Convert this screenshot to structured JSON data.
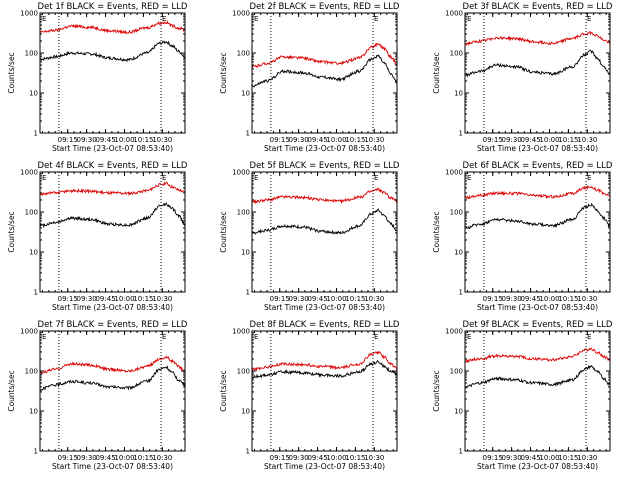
{
  "chart_data": [
    {
      "type": "line",
      "title": "Det 1f BLACK = Events, RED = LLD",
      "xlabel": "Start Time (23-Oct-07 08:53:40)",
      "ylabel": "Counts/sec",
      "xticks": [
        "09:15",
        "09:30",
        "09:45",
        "10:00",
        "10:15",
        "10:30"
      ],
      "yticks": [
        "1",
        "10",
        "100",
        "1000"
      ],
      "ylim": [
        1,
        1000
      ],
      "yscale": "log",
      "x_minutes_range": [
        0,
        115
      ],
      "marker_label": "E",
      "series": [
        {
          "color": "#000000",
          "x": [
            0,
            12,
            25,
            40,
            55,
            70,
            85,
            95,
            100,
            105,
            110,
            115
          ],
          "values": [
            70,
            80,
            100,
            95,
            75,
            68,
            100,
            175,
            190,
            150,
            110,
            80
          ]
        },
        {
          "color": "#dd0000",
          "x": [
            0,
            12,
            25,
            40,
            55,
            70,
            85,
            95,
            100,
            105,
            110,
            115
          ],
          "values": [
            330,
            370,
            470,
            440,
            360,
            330,
            430,
            560,
            580,
            480,
            420,
            380
          ]
        }
      ]
    },
    {
      "type": "line",
      "title": "Det 2f BLACK = Events, RED = LLD",
      "xlabel": "Start Time (23-Oct-07 08:53:40)",
      "ylabel": "Counts/sec",
      "xticks": [
        "09:15",
        "09:30",
        "09:45",
        "10:00",
        "10:15",
        "10:30"
      ],
      "yticks": [
        "1",
        "10",
        "100",
        "1000"
      ],
      "ylim": [
        1,
        1000
      ],
      "yscale": "log",
      "x_minutes_range": [
        0,
        115
      ],
      "marker_label": "E",
      "series": [
        {
          "color": "#000000",
          "x": [
            0,
            12,
            25,
            40,
            55,
            70,
            85,
            95,
            100,
            105,
            110,
            115
          ],
          "values": [
            15,
            20,
            35,
            32,
            25,
            22,
            35,
            70,
            85,
            55,
            30,
            18
          ]
        },
        {
          "color": "#dd0000",
          "x": [
            0,
            12,
            25,
            40,
            55,
            70,
            85,
            95,
            100,
            105,
            110,
            115
          ],
          "values": [
            45,
            55,
            80,
            75,
            60,
            55,
            75,
            140,
            170,
            130,
            80,
            55
          ]
        }
      ]
    },
    {
      "type": "line",
      "title": "Det 3f BLACK = Events, RED = LLD",
      "xlabel": "Start Time (23-Oct-07 08:53:40)",
      "ylabel": "Counts/sec",
      "xticks": [
        "09:15",
        "09:30",
        "09:45",
        "10:00",
        "10:15",
        "10:30"
      ],
      "yticks": [
        "1",
        "10",
        "100",
        "1000"
      ],
      "ylim": [
        1,
        1000
      ],
      "yscale": "log",
      "x_minutes_range": [
        0,
        115
      ],
      "marker_label": "E",
      "series": [
        {
          "color": "#000000",
          "x": [
            0,
            12,
            25,
            40,
            55,
            70,
            85,
            95,
            100,
            105,
            110,
            115
          ],
          "values": [
            28,
            35,
            50,
            45,
            33,
            30,
            45,
            90,
            110,
            75,
            45,
            30
          ]
        },
        {
          "color": "#dd0000",
          "x": [
            0,
            12,
            25,
            40,
            55,
            70,
            85,
            95,
            100,
            105,
            110,
            115
          ],
          "values": [
            170,
            195,
            240,
            230,
            190,
            175,
            230,
            300,
            320,
            270,
            210,
            180
          ]
        }
      ]
    },
    {
      "type": "line",
      "title": "Det 4f BLACK = Events, RED = LLD",
      "xlabel": "Start Time (23-Oct-07 08:53:40)",
      "ylabel": "Counts/sec",
      "xticks": [
        "09:15",
        "09:30",
        "09:45",
        "10:00",
        "10:15",
        "10:30"
      ],
      "yticks": [
        "1",
        "10",
        "100",
        "1000"
      ],
      "ylim": [
        1,
        1000
      ],
      "yscale": "log",
      "x_minutes_range": [
        0,
        115
      ],
      "marker_label": "E",
      "series": [
        {
          "color": "#000000",
          "x": [
            0,
            12,
            25,
            40,
            55,
            70,
            85,
            95,
            100,
            105,
            110,
            115
          ],
          "values": [
            45,
            55,
            70,
            65,
            50,
            47,
            70,
            140,
            160,
            120,
            80,
            50
          ]
        },
        {
          "color": "#dd0000",
          "x": [
            0,
            12,
            25,
            40,
            55,
            70,
            85,
            95,
            100,
            105,
            110,
            115
          ],
          "values": [
            280,
            300,
            340,
            330,
            300,
            290,
            340,
            480,
            520,
            420,
            350,
            310
          ]
        }
      ]
    },
    {
      "type": "line",
      "title": "Det 5f BLACK = Events, RED = LLD",
      "xlabel": "Start Time (23-Oct-07 08:53:40)",
      "ylabel": "Counts/sec",
      "xticks": [
        "09:15",
        "09:30",
        "09:45",
        "10:00",
        "10:15",
        "10:30"
      ],
      "yticks": [
        "1",
        "10",
        "100",
        "1000"
      ],
      "ylim": [
        1,
        1000
      ],
      "yscale": "log",
      "x_minutes_range": [
        0,
        115
      ],
      "marker_label": "E",
      "series": [
        {
          "color": "#000000",
          "x": [
            0,
            12,
            25,
            40,
            55,
            70,
            85,
            95,
            100,
            105,
            110,
            115
          ],
          "values": [
            30,
            35,
            45,
            42,
            33,
            30,
            45,
            90,
            110,
            80,
            50,
            35
          ]
        },
        {
          "color": "#dd0000",
          "x": [
            0,
            12,
            25,
            40,
            55,
            70,
            85,
            95,
            100,
            105,
            110,
            115
          ],
          "values": [
            180,
            200,
            240,
            230,
            200,
            185,
            230,
            330,
            370,
            300,
            230,
            190
          ]
        }
      ]
    },
    {
      "type": "line",
      "title": "Det 6f BLACK = Events, RED = LLD",
      "xlabel": "Start Time (23-Oct-07 08:53:40)",
      "ylabel": "Counts/sec",
      "xticks": [
        "09:15",
        "09:30",
        "09:45",
        "10:00",
        "10:15",
        "10:30"
      ],
      "yticks": [
        "1",
        "10",
        "100",
        "1000"
      ],
      "ylim": [
        1,
        1000
      ],
      "yscale": "log",
      "x_minutes_range": [
        0,
        115
      ],
      "marker_label": "E",
      "series": [
        {
          "color": "#000000",
          "x": [
            0,
            12,
            25,
            40,
            55,
            70,
            85,
            95,
            100,
            105,
            110,
            115
          ],
          "values": [
            40,
            50,
            65,
            60,
            50,
            46,
            65,
            130,
            150,
            110,
            70,
            45
          ]
        },
        {
          "color": "#dd0000",
          "x": [
            0,
            12,
            25,
            40,
            55,
            70,
            85,
            95,
            100,
            105,
            110,
            115
          ],
          "values": [
            230,
            260,
            300,
            290,
            260,
            240,
            290,
            400,
            430,
            360,
            290,
            250
          ]
        }
      ]
    },
    {
      "type": "line",
      "title": "Det 7f BLACK = Events, RED = LLD",
      "xlabel": "Start Time (23-Oct-07 08:53:40)",
      "ylabel": "Counts/sec",
      "xticks": [
        "09:15",
        "09:30",
        "09:45",
        "10:00",
        "10:15",
        "10:30"
      ],
      "yticks": [
        "1",
        "10",
        "100",
        "1000"
      ],
      "ylim": [
        1,
        1000
      ],
      "yscale": "log",
      "x_minutes_range": [
        0,
        115
      ],
      "marker_label": "E",
      "series": [
        {
          "color": "#000000",
          "x": [
            0,
            12,
            25,
            40,
            55,
            70,
            85,
            95,
            100,
            105,
            110,
            115
          ],
          "values": [
            35,
            45,
            55,
            50,
            40,
            38,
            55,
            110,
            125,
            90,
            60,
            45
          ]
        },
        {
          "color": "#dd0000",
          "x": [
            0,
            12,
            25,
            40,
            55,
            70,
            85,
            95,
            100,
            105,
            110,
            115
          ],
          "values": [
            90,
            110,
            150,
            140,
            110,
            100,
            130,
            200,
            220,
            180,
            130,
            100
          ]
        }
      ]
    },
    {
      "type": "line",
      "title": "Det 8f BLACK = Events, RED = LLD",
      "xlabel": "Start Time (23-Oct-07 08:53:40)",
      "ylabel": "Counts/sec",
      "xticks": [
        "09:15",
        "09:30",
        "09:45",
        "10:00",
        "10:15",
        "10:30"
      ],
      "yticks": [
        "1",
        "10",
        "100",
        "1000"
      ],
      "ylim": [
        1,
        1000
      ],
      "yscale": "log",
      "x_minutes_range": [
        0,
        115
      ],
      "marker_label": "E",
      "series": [
        {
          "color": "#000000",
          "x": [
            0,
            12,
            25,
            40,
            55,
            70,
            85,
            95,
            100,
            105,
            110,
            115
          ],
          "values": [
            70,
            80,
            95,
            90,
            80,
            75,
            95,
            150,
            170,
            130,
            100,
            80
          ]
        },
        {
          "color": "#dd0000",
          "x": [
            0,
            12,
            25,
            40,
            55,
            70,
            85,
            95,
            100,
            105,
            110,
            115
          ],
          "values": [
            110,
            125,
            150,
            145,
            130,
            120,
            150,
            260,
            300,
            220,
            150,
            120
          ]
        }
      ]
    },
    {
      "type": "line",
      "title": "Det 9f BLACK = Events, RED = LLD",
      "xlabel": "Start Time (23-Oct-07 08:53:40)",
      "ylabel": "Counts/sec",
      "xticks": [
        "09:15",
        "09:30",
        "09:45",
        "10:00",
        "10:15",
        "10:30"
      ],
      "yticks": [
        "1",
        "10",
        "100",
        "1000"
      ],
      "ylim": [
        1,
        1000
      ],
      "yscale": "log",
      "x_minutes_range": [
        0,
        115
      ],
      "marker_label": "E",
      "series": [
        {
          "color": "#000000",
          "x": [
            0,
            12,
            25,
            40,
            55,
            70,
            85,
            95,
            100,
            105,
            110,
            115
          ],
          "values": [
            40,
            50,
            65,
            60,
            50,
            46,
            60,
            110,
            130,
            95,
            65,
            45
          ]
        },
        {
          "color": "#dd0000",
          "x": [
            0,
            12,
            25,
            40,
            55,
            70,
            85,
            95,
            100,
            105,
            110,
            115
          ],
          "values": [
            180,
            200,
            240,
            230,
            200,
            190,
            230,
            330,
            360,
            290,
            230,
            190
          ]
        }
      ]
    }
  ]
}
